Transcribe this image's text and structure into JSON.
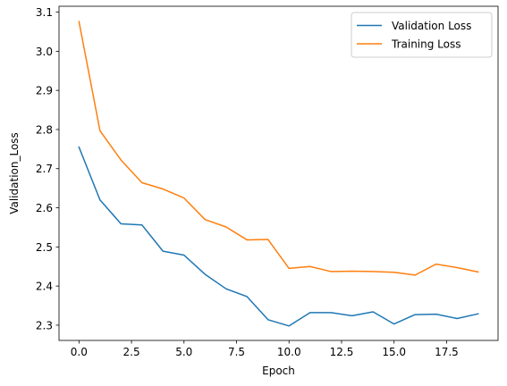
{
  "chart_data": {
    "type": "line",
    "xlabel": "Epoch",
    "ylabel": "Validation_Loss",
    "xlim": [
      -0.95,
      19.95
    ],
    "ylim": [
      2.261,
      3.115
    ],
    "xticks": [
      0,
      2.5,
      5,
      7.5,
      10,
      12.5,
      15,
      17.5
    ],
    "xtick_labels": [
      "0.0",
      "2.5",
      "5.0",
      "7.5",
      "10.0",
      "12.5",
      "15.0",
      "17.5"
    ],
    "yticks": [
      2.3,
      2.4,
      2.5,
      2.6,
      2.7,
      2.8,
      2.9,
      3.0,
      3.1
    ],
    "ytick_labels": [
      "2.3",
      "2.4",
      "2.5",
      "2.6",
      "2.7",
      "2.8",
      "2.9",
      "3.0",
      "3.1"
    ],
    "grid": false,
    "legend_position": "top-right",
    "x": [
      0,
      1,
      2,
      3,
      4,
      5,
      6,
      7,
      8,
      9,
      10,
      11,
      12,
      13,
      14,
      15,
      16,
      17,
      18,
      19
    ],
    "series": [
      {
        "name": "Validation Loss",
        "color": "#1f77b4",
        "values": [
          2.755,
          2.62,
          2.559,
          2.556,
          2.489,
          2.479,
          2.43,
          2.393,
          2.373,
          2.314,
          2.298,
          2.332,
          2.332,
          2.324,
          2.334,
          2.303,
          2.327,
          2.328,
          2.317,
          2.329
        ]
      },
      {
        "name": "Training Loss",
        "color": "#ff7f0e",
        "values": [
          3.076,
          2.797,
          2.722,
          2.664,
          2.648,
          2.625,
          2.57,
          2.551,
          2.518,
          2.519,
          2.445,
          2.45,
          2.437,
          2.438,
          2.437,
          2.435,
          2.428,
          2.456,
          2.447,
          2.436
        ]
      }
    ]
  }
}
